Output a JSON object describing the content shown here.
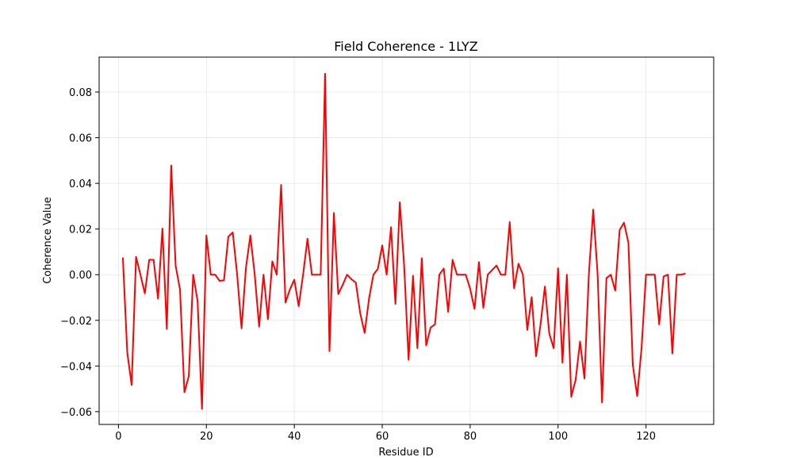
{
  "chart_data": {
    "type": "line",
    "title": "Field Coherence - 1LYZ",
    "xlabel": "Residue ID",
    "ylabel": "Coherence Value",
    "xlim": [
      -4.4,
      135.4
    ],
    "ylim": [
      -0.0656,
      0.0953
    ],
    "xticks": [
      0,
      20,
      40,
      60,
      80,
      100,
      120
    ],
    "yticks": [
      -0.06,
      -0.04,
      -0.02,
      0.0,
      0.02,
      0.04,
      0.06,
      0.08
    ],
    "ytick_labels": [
      "−0.06",
      "−0.04",
      "−0.02",
      "0.00",
      "0.02",
      "0.04",
      "0.06",
      "0.08"
    ],
    "grid": true,
    "legend": false,
    "colors": {
      "line": "#ff0000",
      "grid": "#e6e6e6",
      "axes": "#000000"
    },
    "series": [
      {
        "x": [
          1,
          2,
          3,
          4,
          5,
          6,
          7,
          8,
          9,
          10,
          11,
          12,
          13,
          14,
          15,
          16,
          17,
          18,
          19,
          20,
          21,
          22,
          23,
          24,
          25,
          26,
          27,
          28,
          29,
          30,
          31,
          32,
          33,
          34,
          35,
          36,
          37,
          38,
          39,
          40,
          41,
          42,
          43,
          44,
          45,
          46,
          47,
          48,
          49,
          50,
          51,
          52,
          53,
          54,
          55,
          56,
          57,
          58,
          59,
          60,
          61,
          62,
          63,
          64,
          65,
          66,
          67,
          68,
          69,
          70,
          71,
          72,
          73,
          74,
          75,
          76,
          77,
          78,
          79,
          80,
          81,
          82,
          83,
          84,
          85,
          86,
          87,
          88,
          89,
          90,
          91,
          92,
          93,
          94,
          95,
          96,
          97,
          98,
          99,
          100,
          101,
          102,
          103,
          104,
          105,
          106,
          107,
          108,
          109,
          110,
          111,
          112,
          113,
          114,
          115,
          116,
          117,
          118,
          119,
          120,
          121,
          122,
          123,
          124,
          125,
          126,
          127,
          128,
          129
        ],
        "values": [
          0.0075,
          -0.034,
          -0.0483,
          0.0078,
          0.0,
          -0.0082,
          0.0065,
          0.0065,
          -0.0105,
          0.0202,
          -0.0238,
          0.0478,
          0.004,
          -0.0065,
          -0.0515,
          -0.0445,
          0.0,
          -0.0115,
          -0.0588,
          0.0172,
          0.0,
          0.0,
          -0.0027,
          -0.0025,
          0.0167,
          0.0185,
          0.0,
          -0.0235,
          0.003,
          0.0172,
          0.0,
          -0.0228,
          0.0,
          -0.0195,
          0.0058,
          0.0,
          0.0393,
          -0.0122,
          -0.0065,
          -0.0022,
          -0.0138,
          0.0,
          0.0157,
          0.0,
          0.0,
          0.0,
          0.088,
          -0.0335,
          0.027,
          -0.0085,
          -0.0045,
          0.0,
          -0.002,
          -0.0035,
          -0.017,
          -0.0255,
          -0.0105,
          0.0,
          0.0025,
          0.0128,
          0.0,
          0.0208,
          -0.0128,
          0.0317,
          0.0035,
          -0.0373,
          -0.0005,
          -0.0322,
          0.0072,
          -0.031,
          -0.0232,
          -0.0218,
          0.0,
          0.0027,
          -0.0163,
          0.0065,
          0.0,
          0.0,
          0.0,
          -0.0062,
          -0.015,
          0.0055,
          -0.0145,
          0.0,
          0.002,
          0.004,
          0.0,
          0.0,
          0.023,
          -0.006,
          0.0048,
          0.0,
          -0.0242,
          -0.0098,
          -0.0357,
          -0.022,
          -0.0052,
          -0.0258,
          -0.0322,
          0.0028,
          -0.0385,
          0.0,
          -0.0535,
          -0.046,
          -0.0293,
          -0.0455,
          0.0,
          0.0285,
          0.0,
          -0.056,
          -0.0015,
          0.0,
          -0.007,
          0.0195,
          0.0228,
          0.014,
          -0.0395,
          -0.0532,
          -0.032,
          0.0,
          0.0,
          0.0,
          -0.0218,
          -0.0008,
          0.0,
          -0.0345,
          0.0,
          0.0,
          0.0005
        ]
      }
    ]
  }
}
